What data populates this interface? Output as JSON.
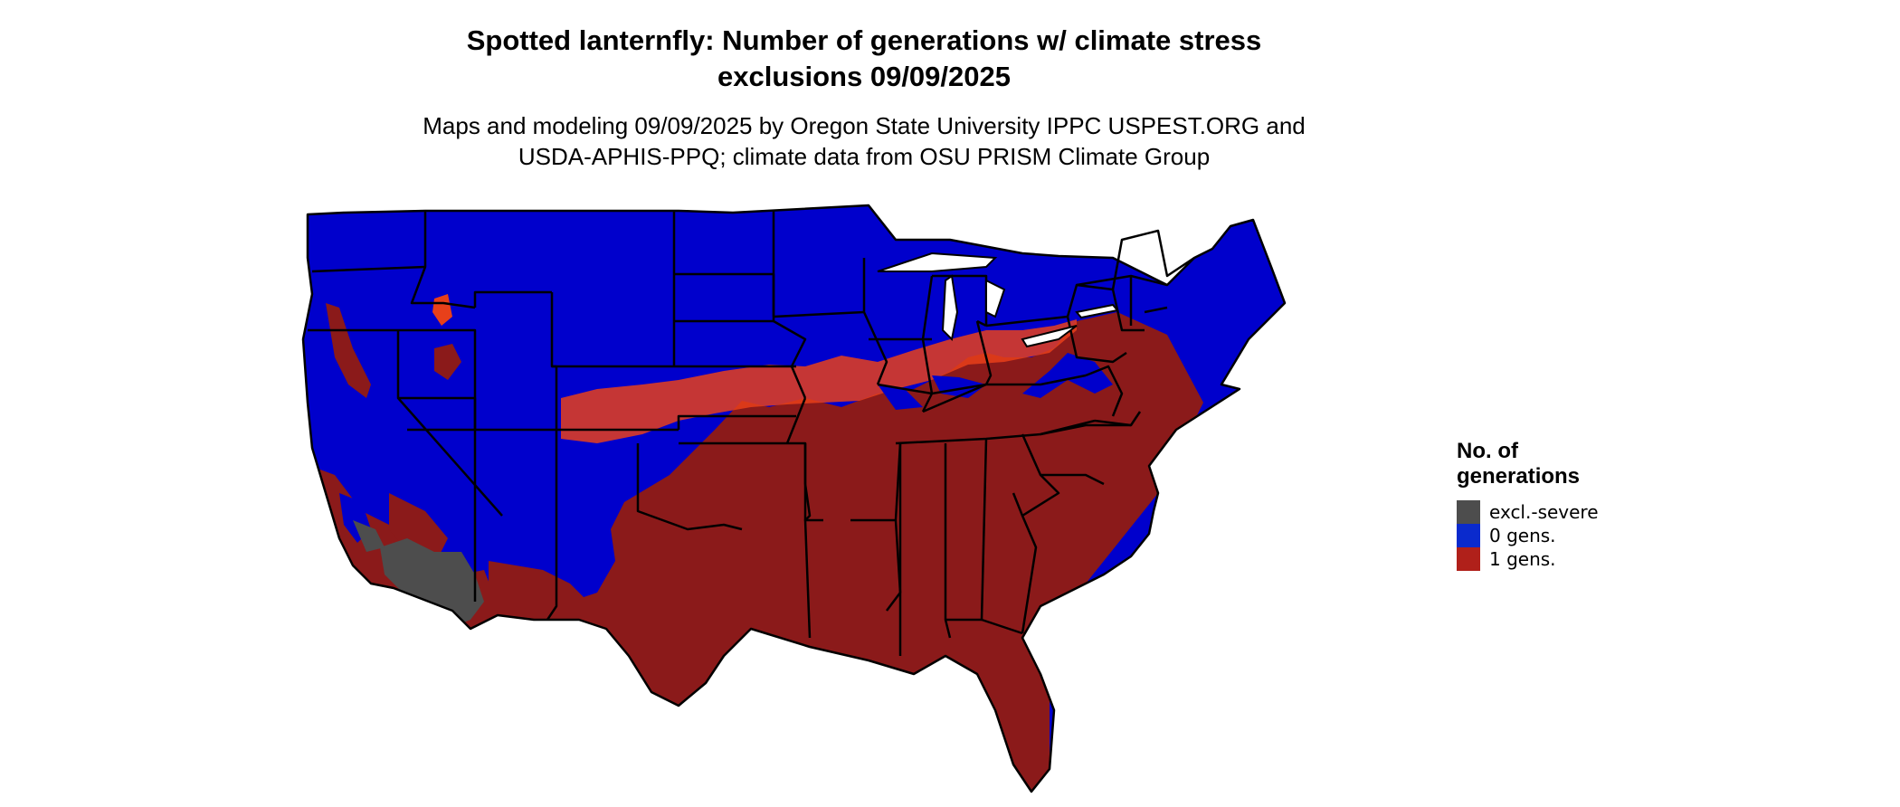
{
  "title_lines": [
    "Spotted lanternfly: Number of generations w/ climate stress",
    "exclusions 09/09/2025"
  ],
  "subtitle_lines": [
    "Maps and modeling 09/09/2025 by Oregon State University IPPC USPEST.ORG and",
    "USDA-APHIS-PPQ; climate data from OSU PRISM Climate Group"
  ],
  "legend": {
    "title": "No. of generations",
    "items": [
      {
        "label": "excl.-severe",
        "color": "#4d4d4d"
      },
      {
        "label": "0 gens.",
        "color": "#0a2acd"
      },
      {
        "label": "1 gens.",
        "color": "#b0201a"
      }
    ]
  },
  "map": {
    "region": "Contiguous United States",
    "classes": {
      "excl_severe": "#4d4d4d",
      "gens_0": "#0000cc",
      "gens_1": "#8b1a1a",
      "gens_1_light": "#e8401a"
    },
    "boundary_color": "#000000"
  }
}
